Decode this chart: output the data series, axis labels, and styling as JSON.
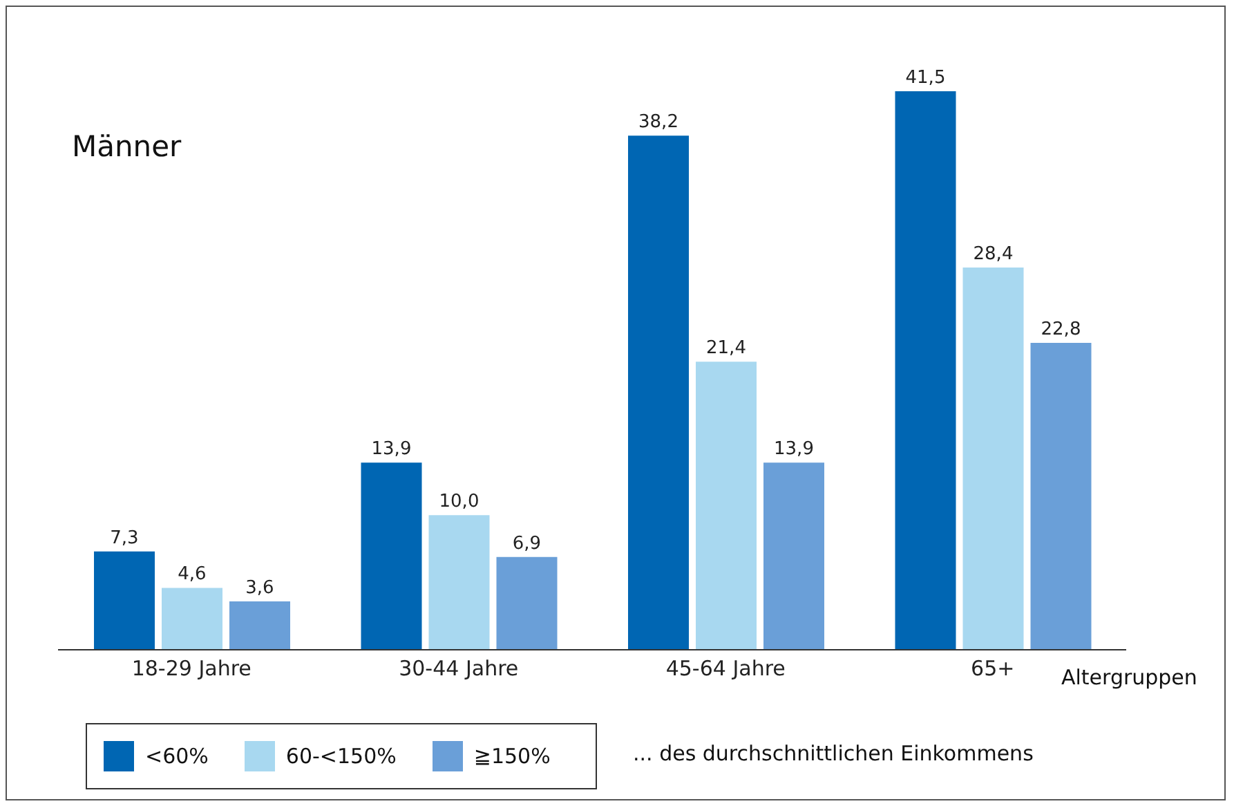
{
  "chart_data": {
    "type": "bar",
    "title": "Männer",
    "xlabel": "Altergruppen",
    "categories": [
      "18-29 Jahre",
      "30-44 Jahre",
      "45-64 Jahre",
      "65+"
    ],
    "series": [
      {
        "name": "<60%",
        "color": "#0066b3",
        "values": [
          7.3,
          13.9,
          38.2,
          41.5
        ],
        "value_labels": [
          "7,3",
          "13,9",
          "38,2",
          "41,5"
        ]
      },
      {
        "name": "60-<150%",
        "color": "#a8d8f0",
        "values": [
          4.6,
          10.0,
          21.4,
          28.4
        ],
        "value_labels": [
          "4,6",
          "10,0",
          "21,4",
          "28,4"
        ]
      },
      {
        "name": "≧150%",
        "color": "#6a9fd8",
        "values": [
          3.6,
          6.9,
          13.9,
          22.8
        ],
        "value_labels": [
          "3,6",
          "6,9",
          "13,9",
          "22,8"
        ]
      }
    ],
    "annotations": [
      "... des durchschnittlichen Einkommens"
    ],
    "legend": "bottom left",
    "grid": false
  }
}
